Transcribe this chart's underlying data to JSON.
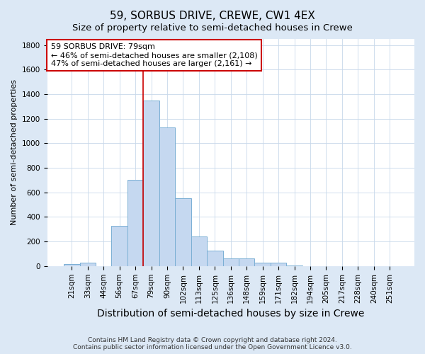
{
  "title": "59, SORBUS DRIVE, CREWE, CW1 4EX",
  "subtitle": "Size of property relative to semi-detached houses in Crewe",
  "xlabel": "Distribution of semi-detached houses by size in Crewe",
  "ylabel": "Number of semi-detached properties",
  "categories": [
    "21sqm",
    "33sqm",
    "44sqm",
    "56sqm",
    "67sqm",
    "79sqm",
    "90sqm",
    "102sqm",
    "113sqm",
    "125sqm",
    "136sqm",
    "148sqm",
    "159sqm",
    "171sqm",
    "182sqm",
    "194sqm",
    "205sqm",
    "217sqm",
    "228sqm",
    "240sqm",
    "251sqm"
  ],
  "values": [
    15,
    30,
    0,
    325,
    700,
    1350,
    1130,
    550,
    240,
    125,
    65,
    65,
    25,
    25,
    5,
    0,
    0,
    0,
    0,
    0,
    0
  ],
  "bar_color": "#c5d8f0",
  "bar_edge_color": "#7aafd4",
  "highlight_line_color": "#cc0000",
  "highlight_bar_index": 5,
  "annotation_text": "59 SORBUS DRIVE: 79sqm\n← 46% of semi-detached houses are smaller (2,108)\n47% of semi-detached houses are larger (2,161) →",
  "annotation_box_color": "#ffffff",
  "annotation_box_edge_color": "#cc0000",
  "footer_line1": "Contains HM Land Registry data © Crown copyright and database right 2024.",
  "footer_line2": "Contains public sector information licensed under the Open Government Licence v3.0.",
  "bg_color": "#dce8f5",
  "plot_bg_color": "#ffffff",
  "grid_color": "#c8d8ea",
  "ylim": [
    0,
    1850
  ],
  "yticks": [
    0,
    200,
    400,
    600,
    800,
    1000,
    1200,
    1400,
    1600,
    1800
  ],
  "title_fontsize": 11,
  "subtitle_fontsize": 9.5,
  "xlabel_fontsize": 10,
  "ylabel_fontsize": 8,
  "tick_fontsize": 7.5,
  "annotation_fontsize": 8,
  "footer_fontsize": 6.5
}
